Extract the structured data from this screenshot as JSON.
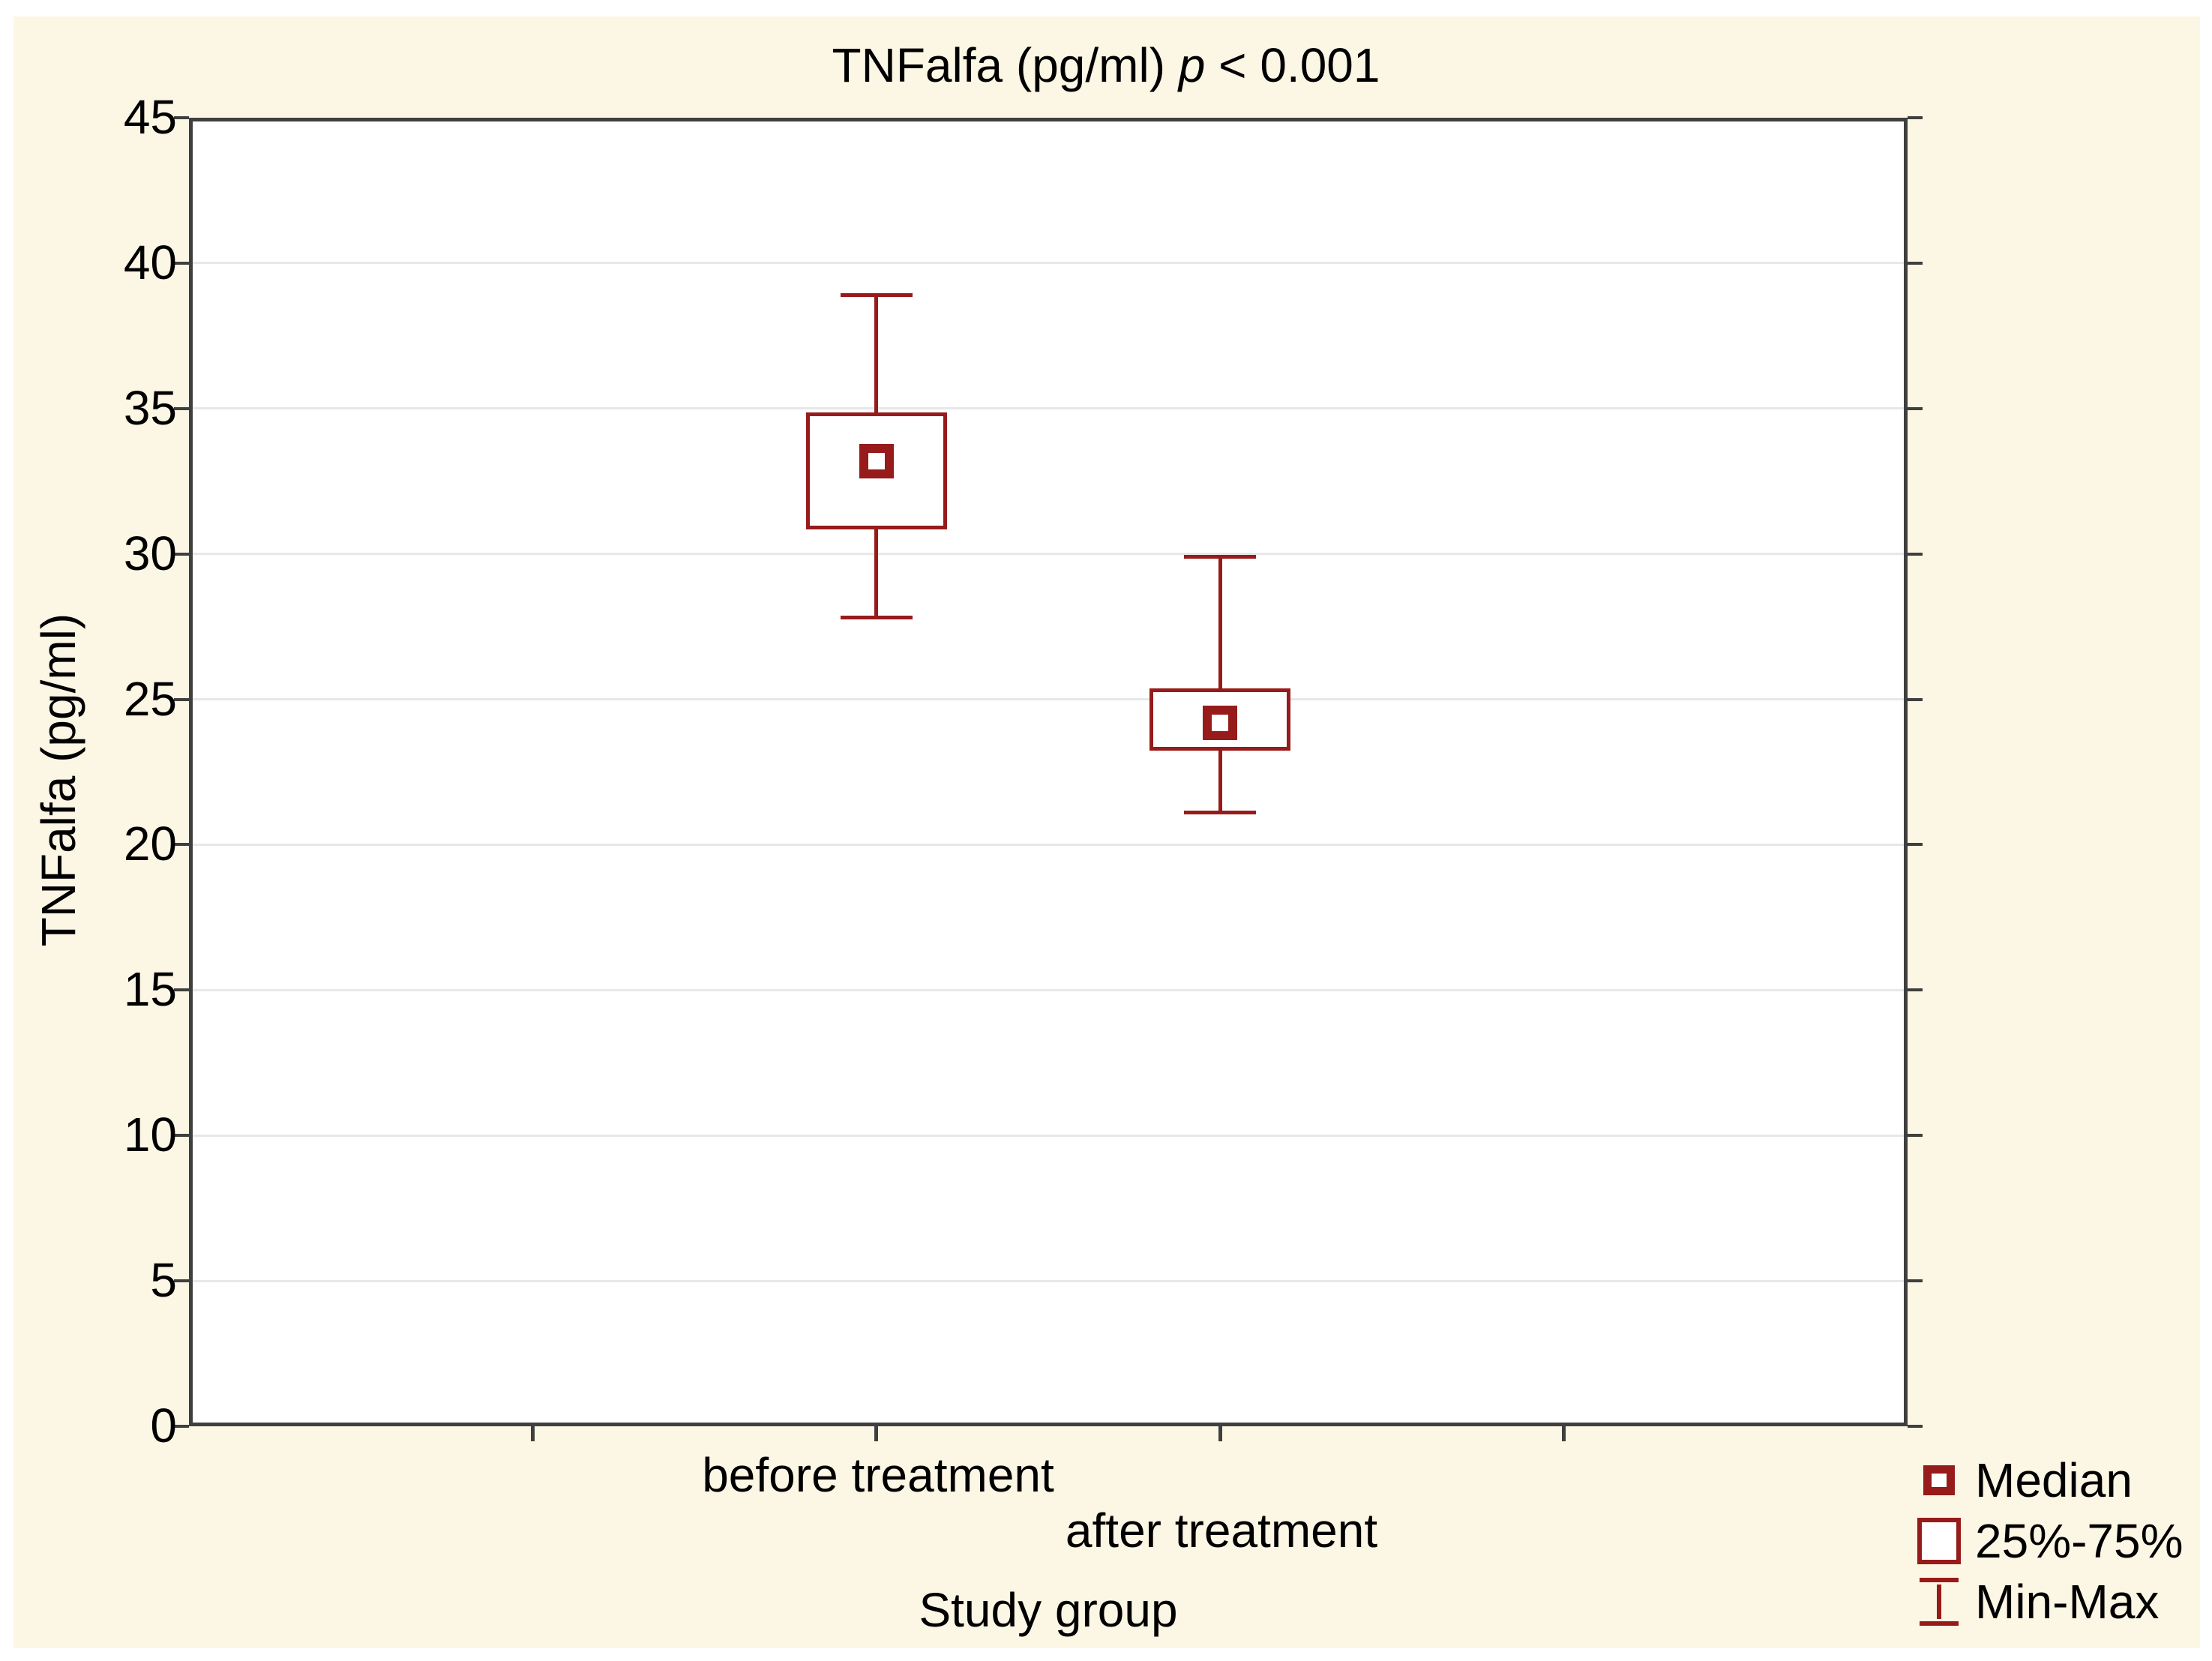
{
  "figure": {
    "title": {
      "prefix": "TNFalfa (pg/ml) ",
      "italic": "p",
      "suffix": " < 0.001"
    }
  },
  "chart_data": {
    "type": "box",
    "title": "TNFalfa (pg/ml) p < 0.001",
    "p_value_note": "p < 0.001",
    "xlabel": "Study group",
    "ylabel": "TNFalfa (pg/ml)",
    "ylim": [
      0,
      45
    ],
    "yticks": [
      0,
      5,
      10,
      15,
      20,
      25,
      30,
      35,
      40,
      45
    ],
    "grid": "horizontal",
    "legend_position": "bottom-right",
    "categories": [
      "before treatment",
      "after treatment"
    ],
    "series": [
      {
        "name": "before treatment",
        "min": 27.8,
        "q1": 30.9,
        "median": 33.2,
        "q3": 34.8,
        "max": 38.9
      },
      {
        "name": "after treatment",
        "min": 21.1,
        "q1": 23.3,
        "median": 24.2,
        "q3": 25.3,
        "max": 29.9
      }
    ],
    "legend": [
      {
        "symbol": "median-marker",
        "label": "Median"
      },
      {
        "symbol": "box-25-75",
        "label": "25%-75%"
      },
      {
        "symbol": "whisker-min-max",
        "label": "Min-Max"
      }
    ],
    "colors": {
      "series": "#971b1b",
      "text": "#000000",
      "frame": "#3f3f3f",
      "grid": "#e8e8e8",
      "panel_background": "#fcf6e4",
      "plot_background": "#ffffff",
      "page_background": "#ffffff"
    }
  }
}
